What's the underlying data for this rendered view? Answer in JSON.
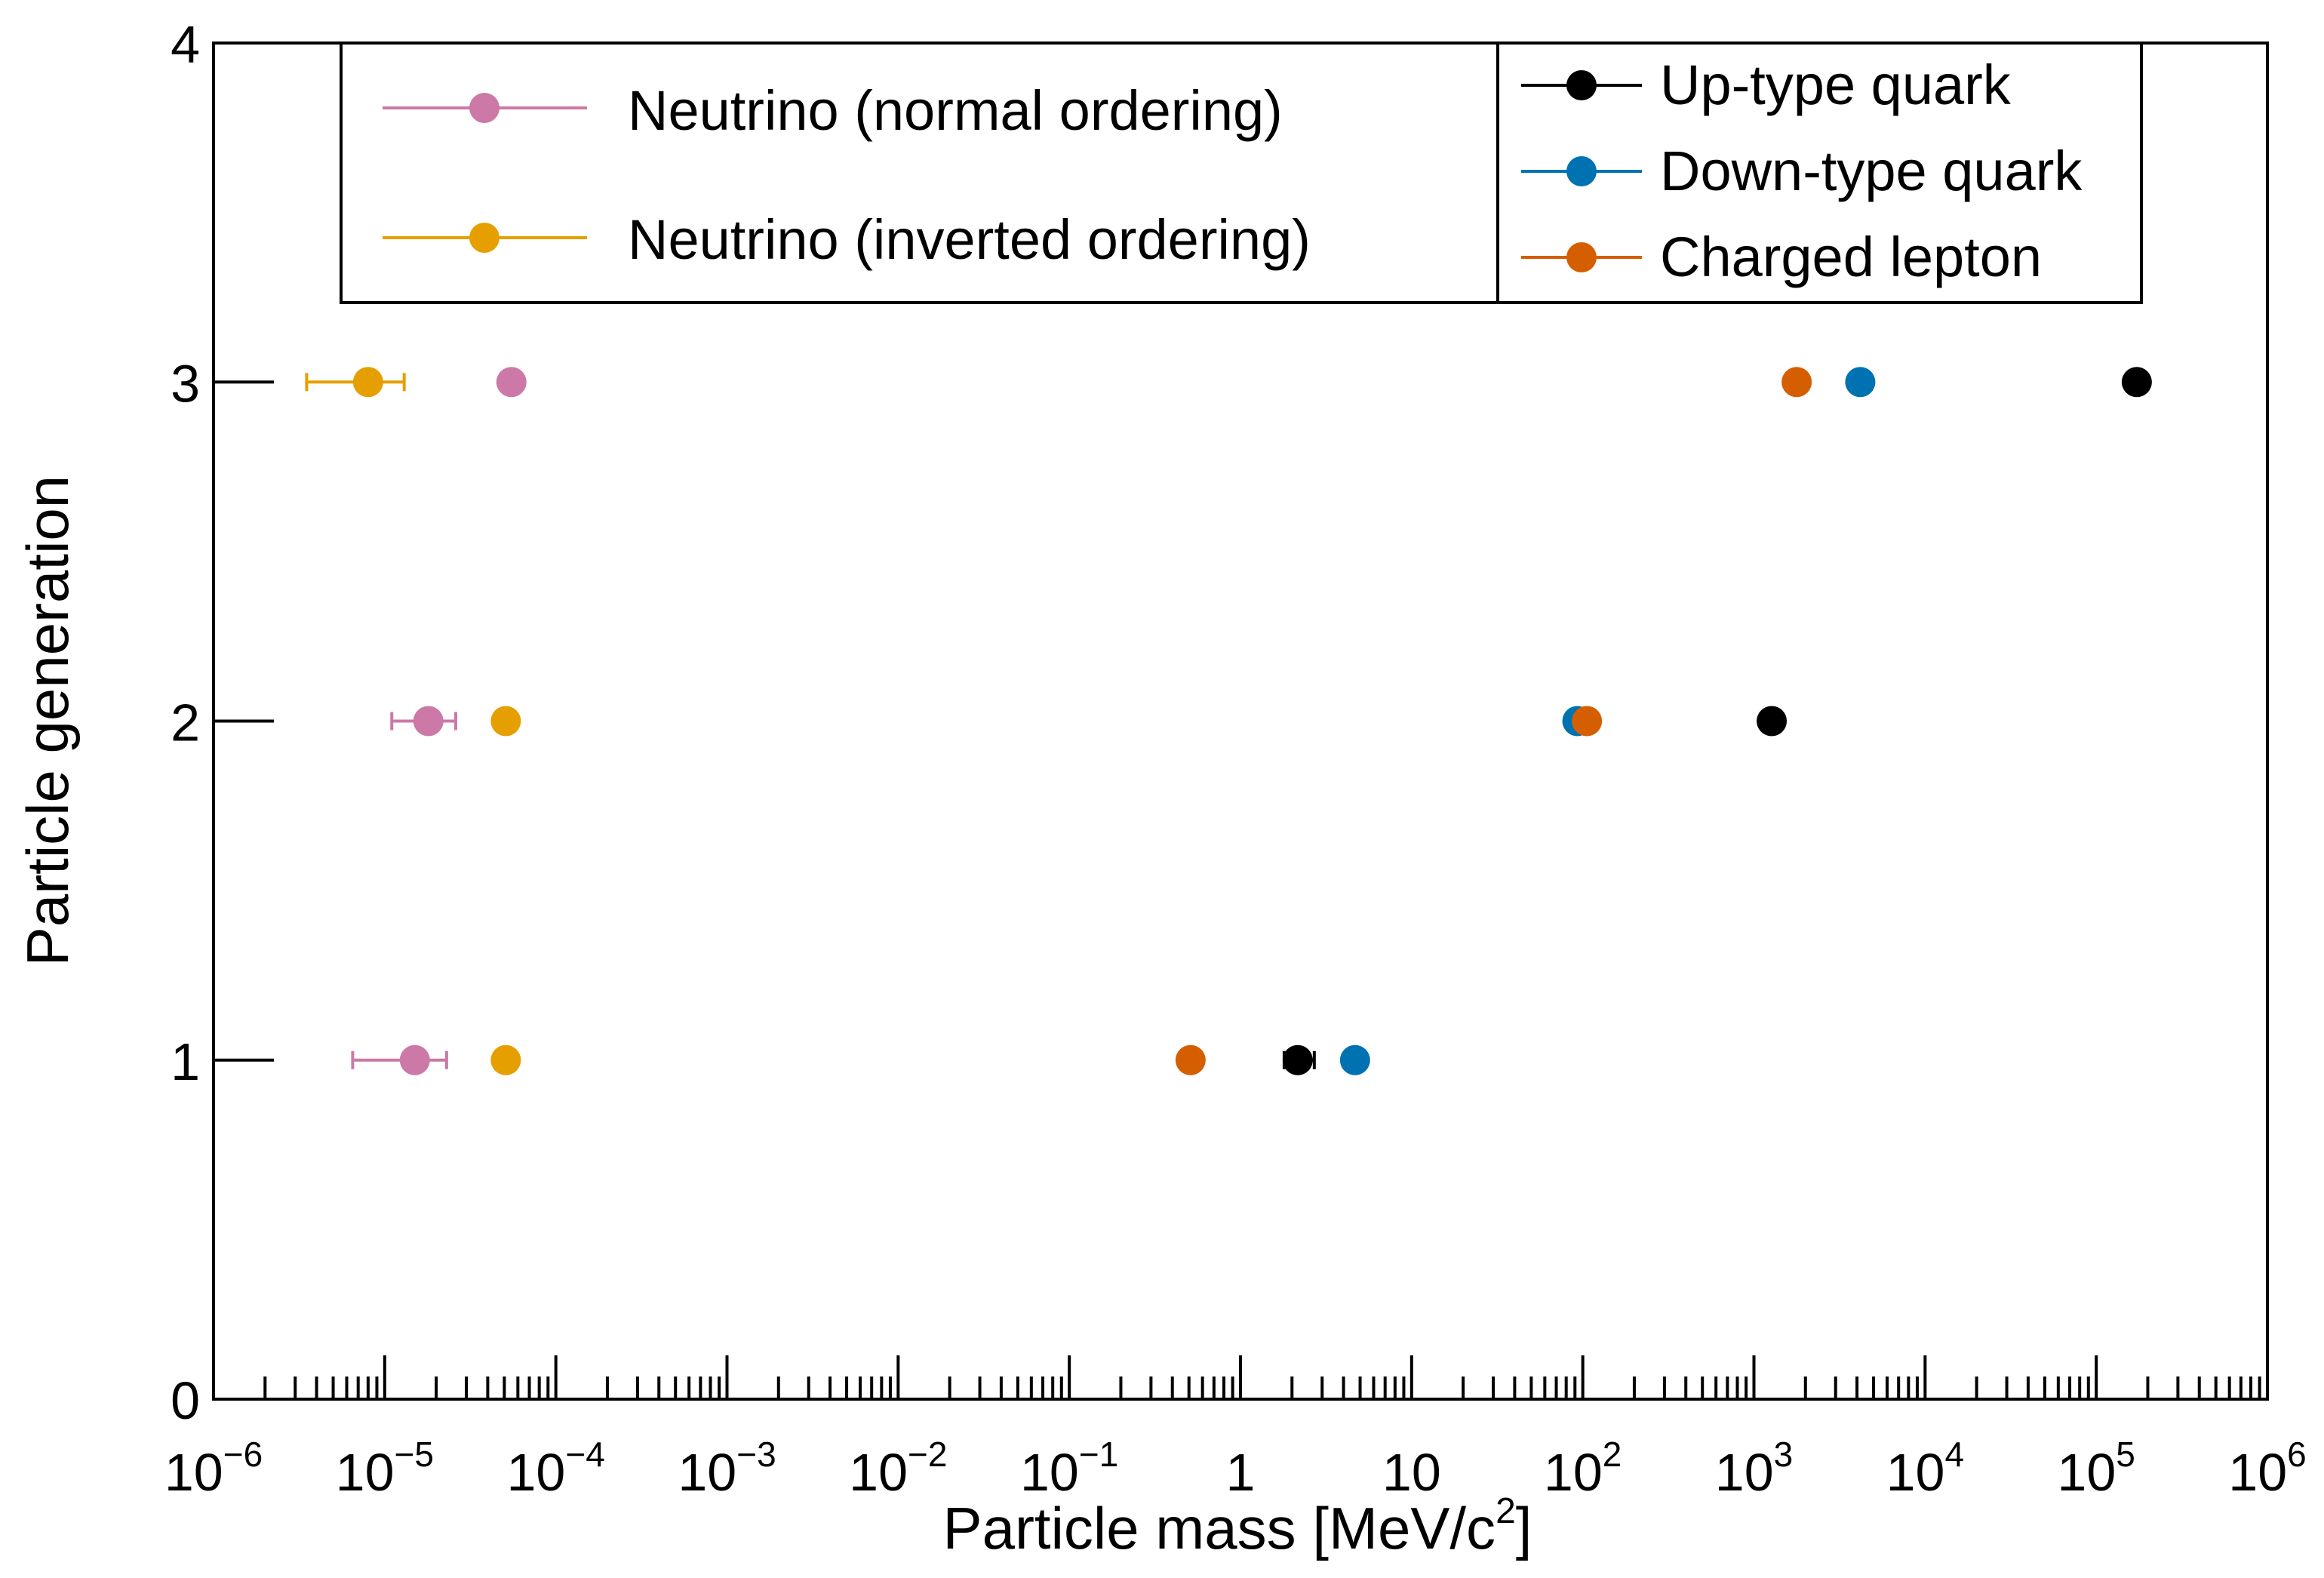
{
  "chart_data": {
    "type": "scatter",
    "x_scale": "log",
    "xlim": [
      1e-06,
      1000000.0
    ],
    "ylim": [
      0,
      4
    ],
    "xlabel": "Particle mass [MeV/c",
    "xlabel_sup": "2",
    "xlabel_close": "]",
    "ylabel": "Particle generation",
    "x_ticks": [
      {
        "value": 1e-06,
        "base": "10",
        "exp": "−6"
      },
      {
        "value": 1e-05,
        "base": "10",
        "exp": "−5"
      },
      {
        "value": 0.0001,
        "base": "10",
        "exp": "−4"
      },
      {
        "value": 0.001,
        "base": "10",
        "exp": "−3"
      },
      {
        "value": 0.01,
        "base": "10",
        "exp": "−2"
      },
      {
        "value": 0.1,
        "base": "10",
        "exp": "−1"
      },
      {
        "value": 1,
        "base": "1",
        "exp": ""
      },
      {
        "value": 10,
        "base": "10",
        "exp": ""
      },
      {
        "value": 100,
        "base": "10",
        "exp": "2"
      },
      {
        "value": 1000,
        "base": "10",
        "exp": "3"
      },
      {
        "value": 10000,
        "base": "10",
        "exp": "4"
      },
      {
        "value": 100000,
        "base": "10",
        "exp": "5"
      },
      {
        "value": 1000000,
        "base": "10",
        "exp": "6"
      }
    ],
    "y_ticks": [
      {
        "value": 0,
        "label": "0"
      },
      {
        "value": 1,
        "label": "1"
      },
      {
        "value": 2,
        "label": "2"
      },
      {
        "value": 3,
        "label": "3"
      },
      {
        "value": 4,
        "label": "4"
      }
    ],
    "series": [
      {
        "key": "nu_no",
        "name": "Neutrino (normal ordering)",
        "color": "#CC79A7",
        "points": [
          {
            "gen": 1,
            "mass": 1.5e-05,
            "err": [
              6.5e-06,
              2.3e-05
            ]
          },
          {
            "gen": 2,
            "mass": 1.8e-05,
            "err": [
              1.1e-05,
              2.6e-05
            ]
          },
          {
            "gen": 3,
            "mass": 5.5e-05
          }
        ]
      },
      {
        "key": "nu_io",
        "name": "Neutrino (inverted ordering)",
        "color": "#E69F00",
        "points": [
          {
            "gen": 1,
            "mass": 5.1e-05
          },
          {
            "gen": 2,
            "mass": 5.1e-05
          },
          {
            "gen": 3,
            "mass": 8e-06,
            "err": [
              3.5e-06,
              1.3e-05
            ]
          }
        ]
      },
      {
        "key": "up",
        "name": "Up-type quark",
        "color": "#000000",
        "points": [
          {
            "gen": 1,
            "mass": 2.16,
            "err": [
              1.8,
              2.7
            ]
          },
          {
            "gen": 2,
            "mass": 1270
          },
          {
            "gen": 3,
            "mass": 172500
          }
        ]
      },
      {
        "key": "down",
        "name": "Down-type quark",
        "color": "#0072B2",
        "points": [
          {
            "gen": 1,
            "mass": 4.67
          },
          {
            "gen": 2,
            "mass": 93
          },
          {
            "gen": 3,
            "mass": 4180
          }
        ]
      },
      {
        "key": "lepton",
        "name": "Charged lepton",
        "color": "#D55E00",
        "points": [
          {
            "gen": 1,
            "mass": 0.511
          },
          {
            "gen": 2,
            "mass": 105.7
          },
          {
            "gen": 3,
            "mass": 1777
          }
        ]
      }
    ]
  },
  "legend": {
    "left": [
      {
        "label": "Neutrino (normal ordering)",
        "color": "#CC79A7"
      },
      {
        "label": "Neutrino (inverted ordering)",
        "color": "#E69F00"
      }
    ],
    "right": [
      {
        "label": "Up-type quark",
        "color": "#000000"
      },
      {
        "label": "Down-type quark",
        "color": "#0072B2"
      },
      {
        "label": "Charged lepton",
        "color": "#D55E00"
      }
    ]
  }
}
